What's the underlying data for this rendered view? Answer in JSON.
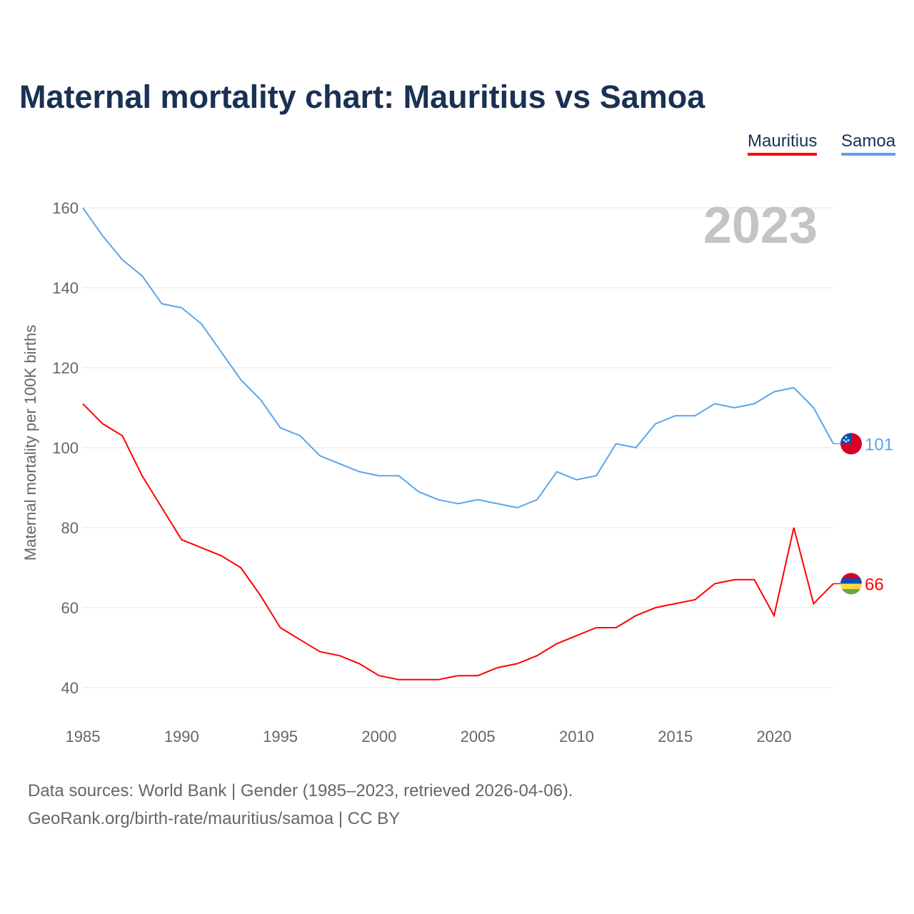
{
  "chart_data": {
    "type": "line",
    "title": "Maternal mortality chart: Mauritius vs Samoa",
    "ylabel": "Maternal mortality per 100K births",
    "xlabel": "",
    "year_label": "2023",
    "ylim": [
      40,
      160
    ],
    "xlim": [
      1985,
      2023
    ],
    "yticks": [
      40,
      60,
      80,
      100,
      120,
      140,
      160
    ],
    "xticks": [
      1985,
      1990,
      1995,
      2000,
      2005,
      2010,
      2015,
      2020
    ],
    "grid": true,
    "legend_position": "top-right",
    "x": [
      1985,
      1986,
      1987,
      1988,
      1989,
      1990,
      1991,
      1992,
      1993,
      1994,
      1995,
      1996,
      1997,
      1998,
      1999,
      2000,
      2001,
      2002,
      2003,
      2004,
      2005,
      2006,
      2007,
      2008,
      2009,
      2010,
      2011,
      2012,
      2013,
      2014,
      2015,
      2016,
      2017,
      2018,
      2019,
      2020,
      2021,
      2022,
      2023
    ],
    "series": [
      {
        "name": "Mauritius",
        "color": "#ff0000",
        "end_label": "66",
        "values": [
          111,
          106,
          103,
          93,
          85,
          77,
          75,
          73,
          70,
          63,
          55,
          52,
          49,
          48,
          46,
          43,
          42,
          42,
          42,
          43,
          43,
          45,
          46,
          48,
          51,
          53,
          55,
          55,
          58,
          60,
          61,
          62,
          66,
          67,
          67,
          58,
          80,
          61,
          66
        ]
      },
      {
        "name": "Samoa",
        "color": "#5aa5ec",
        "end_label": "101",
        "values": [
          160,
          153,
          147,
          143,
          136,
          135,
          131,
          124,
          117,
          112,
          105,
          103,
          98,
          96,
          94,
          93,
          93,
          89,
          87,
          86,
          87,
          86,
          85,
          87,
          94,
          92,
          93,
          101,
          100,
          106,
          108,
          108,
          111,
          110,
          111,
          114,
          115,
          110,
          101
        ]
      }
    ]
  },
  "footer": {
    "line1": "Data sources: World Bank | Gender (1985–2023, retrieved 2026-04-06).",
    "line2": "GeoRank.org/birth-rate/mauritius/samoa | CC BY"
  }
}
